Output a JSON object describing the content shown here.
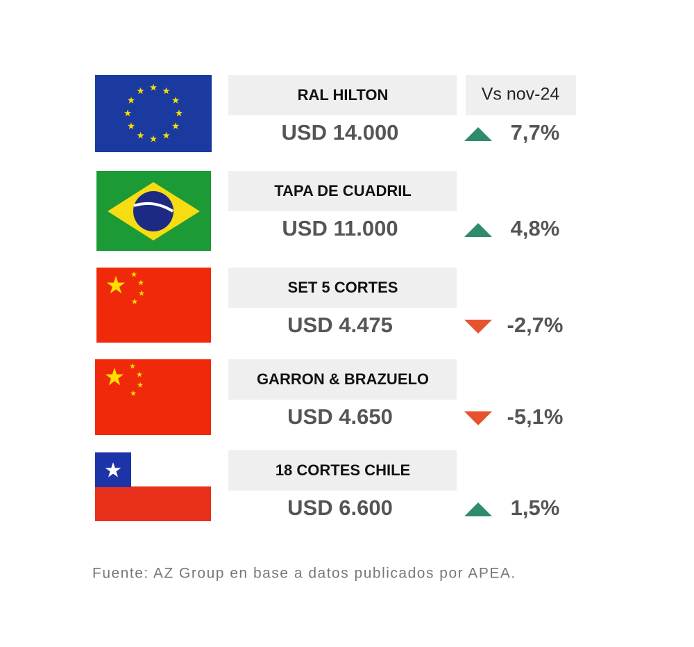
{
  "header": "Vs nov-24",
  "rows": [
    {
      "label": "RAL HILTON",
      "price": "USD 14.000",
      "change": "7,7%"
    },
    {
      "label": "TAPA DE CUADRIL",
      "price": "USD 11.000",
      "change": "4,8%"
    },
    {
      "label": "SET 5 CORTES",
      "price": "USD 4.475",
      "change": "-2,7%"
    },
    {
      "label": "GARRON & BRAZUELO",
      "price": "USD 4.650",
      "change": "-5,1%"
    },
    {
      "label": "18 CORTES CHILE",
      "price": "USD 6.600",
      "change": "1,5%"
    }
  ],
  "footer": "Fuente: AZ Group en base a datos publicados por APEA."
}
